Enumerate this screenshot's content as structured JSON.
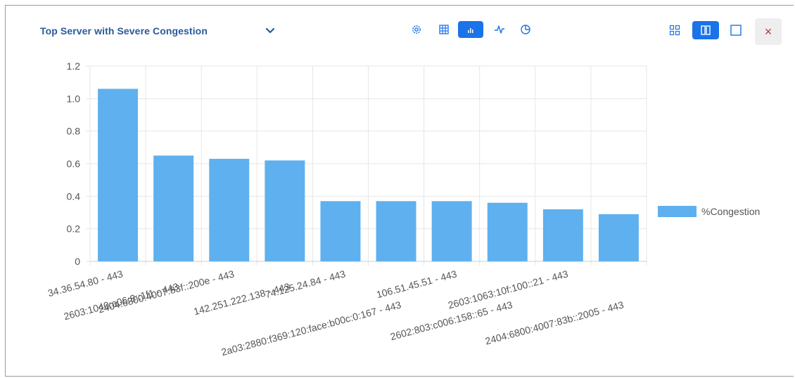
{
  "panel": {
    "title": "Top Server with Severe Congestion"
  },
  "toolbar": {
    "icons": [
      "gear-icon",
      "table-icon",
      "bar-chart-icon",
      "line-chart-icon",
      "pie-chart-icon"
    ],
    "active": "bar-chart-icon"
  },
  "layout_controls": {
    "icons": [
      "grid-layout-icon",
      "split-layout-icon",
      "single-layout-icon"
    ],
    "active": "split-layout-icon",
    "close_label": "×"
  },
  "colors": {
    "bar": "#5fb0ee",
    "accent": "#1a73e8",
    "title": "#2a5a9a",
    "grid": "#e6e6e6",
    "tick": "#555555"
  },
  "chart_data": {
    "type": "bar",
    "categories": [
      "34.36.54.80 - 443",
      "2603:1040:a06:8::1f1 - 443",
      "2404:6800:4007:83f::200e - 443",
      "142.251.222.138 - 443",
      "74.125.24.84 - 443",
      "2a03:2880:f369:120:face:b00c:0:167 - 443",
      "106.51.45.51 - 443",
      "2602:803:c006:158::65 - 443",
      "2603:1063:10f:100::21 - 443",
      "2404:6800:4007:83b::2005 - 443"
    ],
    "series": [
      {
        "name": "%Congestion",
        "values": [
          1.06,
          0.65,
          0.63,
          0.62,
          0.37,
          0.37,
          0.37,
          0.36,
          0.32,
          0.29
        ]
      }
    ],
    "yticks": [
      "0",
      "0.2",
      "0.4",
      "0.6",
      "0.8",
      "1.0",
      "1.2"
    ],
    "ylim": [
      0,
      1.2
    ],
    "grid": true,
    "legend": "right"
  }
}
